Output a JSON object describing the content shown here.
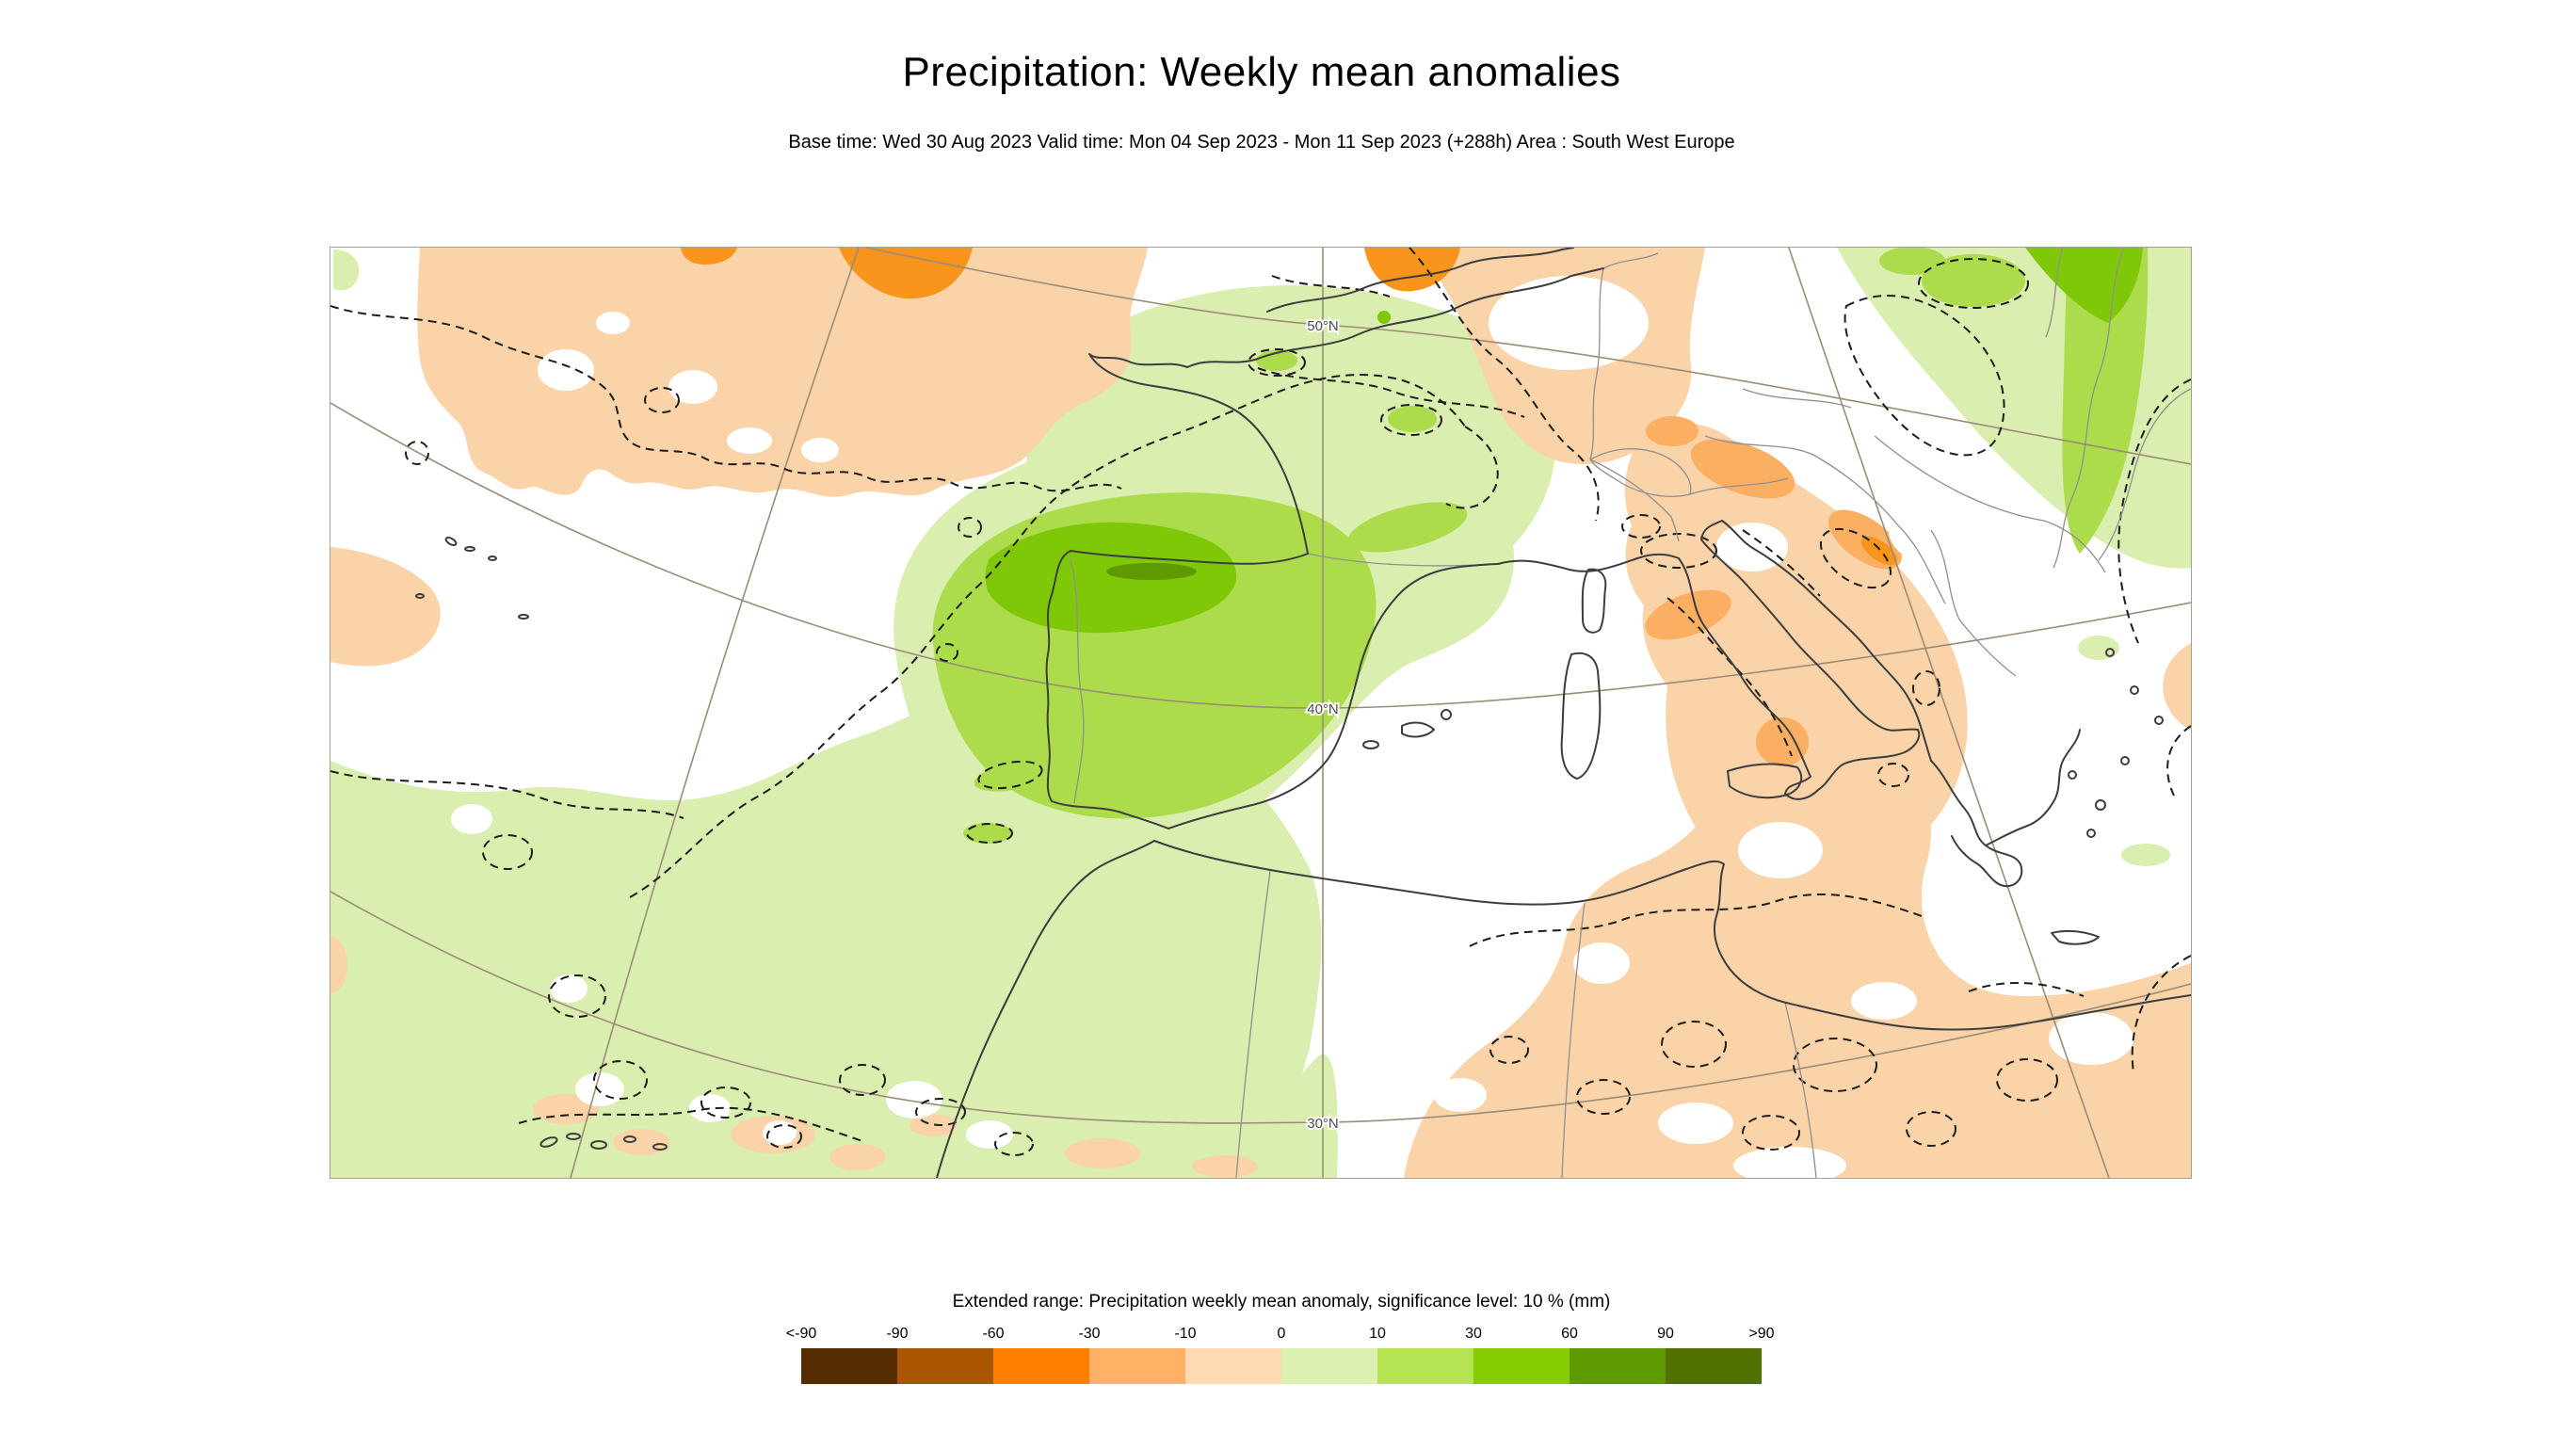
{
  "title": "Precipitation: Weekly mean anomalies",
  "subtitle": "Base time: Wed 30 Aug 2023 Valid time: Mon 04 Sep 2023 - Mon 11 Sep 2023 (+288h) Area : South West Europe",
  "map": {
    "latitude_labels": [
      "50°N",
      "40°N",
      "30°N"
    ]
  },
  "map_colors": {
    "positive_weak": "#D9EEAF",
    "positive_moderate": "#ACDC4B",
    "positive_strong": "#7FC808",
    "positive_intense": "#5F9900",
    "negative_weak": "#FAD3A8",
    "negative_moderate": "#FBAF63",
    "negative_strong": "#F9941C"
  },
  "legend": {
    "title": "Extended range: Precipitation weekly mean anomaly, significance level: 10 % (mm)",
    "tick_labels": [
      "<-90",
      "-90",
      "-60",
      "-30",
      "-10",
      "0",
      "10",
      "30",
      "60",
      "90",
      ">90"
    ],
    "colors": [
      "#552B00",
      "#AA5500",
      "#FF8000",
      "#FFB266",
      "#FFD9B3",
      "#DCF0B2",
      "#B5E352",
      "#86CC00",
      "#5F9900",
      "#507000"
    ]
  }
}
